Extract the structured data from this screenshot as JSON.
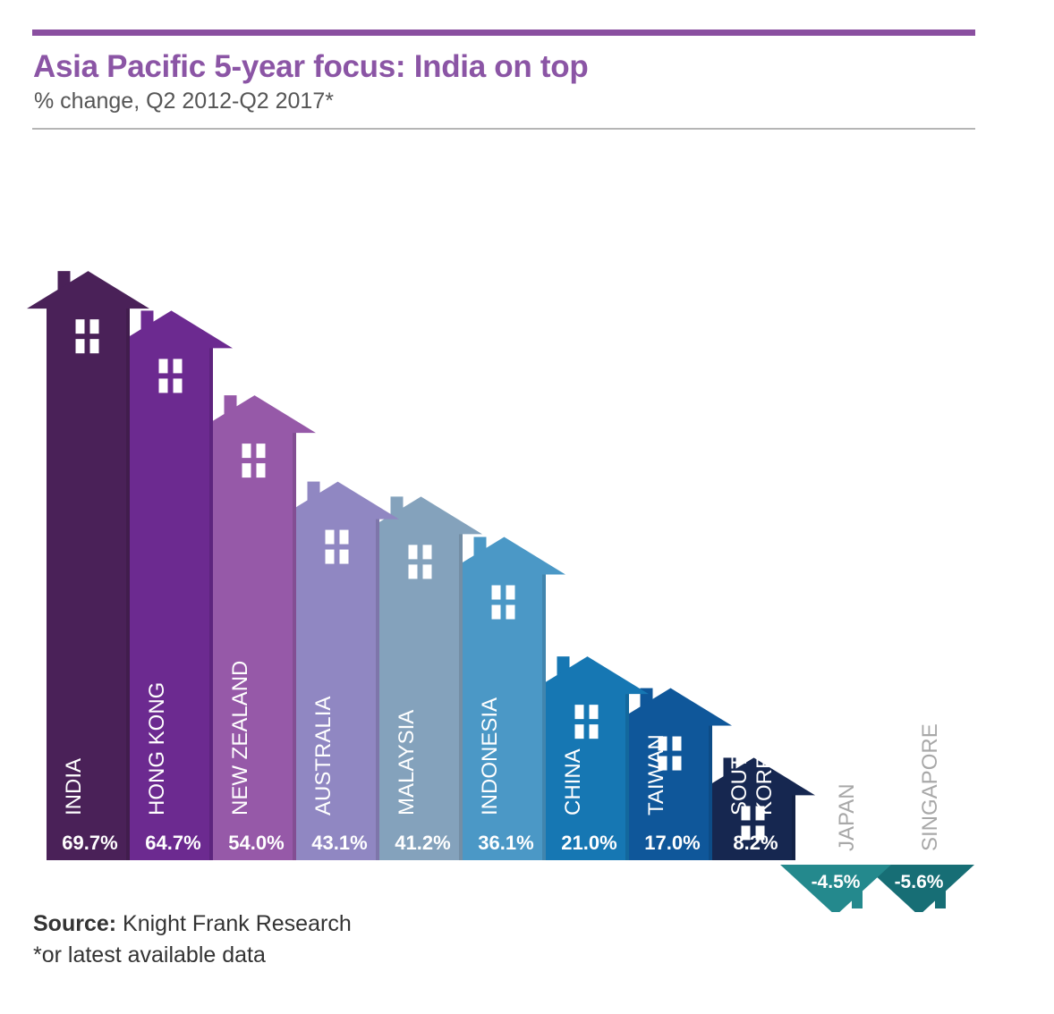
{
  "header": {
    "title": "Asia Pacific 5-year focus: India on top",
    "subtitle": "% change, Q2 2012-Q2 2017*"
  },
  "footer": {
    "source_label": "Source:",
    "source_text": "Knight Frank Research",
    "note": "*or latest available data"
  },
  "colors": {
    "accent": "#8a4fa0",
    "title": "#8b55a5",
    "label_light": "#ffffff",
    "label_negative": "#a8a8a8"
  },
  "chart_data": {
    "type": "bar",
    "title": "Asia Pacific 5-year focus: India on top",
    "subtitle": "% change, Q2 2012-Q2 2017*",
    "xlabel": "",
    "ylabel": "",
    "categories": [
      "INDIA",
      "HONG KONG",
      "NEW ZEALAND",
      "AUSTRALIA",
      "MALAYSIA",
      "INDONESIA",
      "CHINA",
      "TAIWAN",
      "SOUTH KOREA",
      "JAPAN",
      "SINGAPORE"
    ],
    "values": [
      69.7,
      64.7,
      54.0,
      43.1,
      41.2,
      36.1,
      21.0,
      17.0,
      8.2,
      -4.5,
      -5.6
    ],
    "value_labels": [
      "69.7%",
      "64.7%",
      "54.0%",
      "43.1%",
      "41.2%",
      "36.1%",
      "21.0%",
      "17.0%",
      "8.2%",
      "-4.5%",
      "-5.6%"
    ],
    "bar_colors": [
      "#4a2158",
      "#6c2a90",
      "#9659a8",
      "#9087c2",
      "#84a2bc",
      "#4b98c6",
      "#1677b3",
      "#0f579a",
      "#162750",
      "#24898d",
      "#176e75"
    ],
    "mark_style": "house",
    "grid": false,
    "legend": "none"
  }
}
